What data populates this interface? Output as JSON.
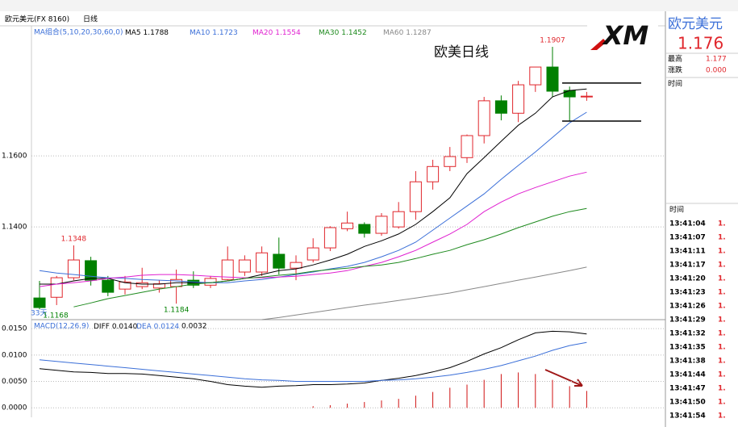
{
  "toolbar": {
    "symbol": "欧元美元(FX 8160)",
    "period": "日线"
  },
  "header": {
    "logo": "XM"
  },
  "chart_data": [
    {
      "type": "candlestick",
      "title": "欧美日线",
      "legend_title": "MA组合(5,10,20,30,60,0)",
      "period_label": "33天",
      "up_color": "#e0262c",
      "down_color": "#008000",
      "ylim": [
        1.1139,
        1.1966
      ],
      "yticks": [
        {
          "value": 1.14,
          "label": "1.1400"
        },
        {
          "value": 1.16,
          "label": "1.1600"
        }
      ],
      "grid": true,
      "open": [
        1.12,
        1.1202,
        1.1257,
        1.1305,
        1.125,
        1.1225,
        1.1232,
        1.1228,
        1.1232,
        1.125,
        1.1236,
        1.1252,
        1.1273,
        1.1273,
        1.1323,
        1.1284,
        1.1307,
        1.1341,
        1.1395,
        1.1407,
        1.1382,
        1.14,
        1.1443,
        1.1527,
        1.157,
        1.1595,
        1.1657,
        1.1755,
        1.172,
        1.18,
        1.185,
        1.1784,
        1.1768
      ],
      "high": [
        1.1248,
        1.1262,
        1.1348,
        1.1316,
        1.1262,
        1.1262,
        1.1285,
        1.125,
        1.128,
        1.1275,
        1.1262,
        1.1345,
        1.132,
        1.1345,
        1.137,
        1.132,
        1.1368,
        1.1402,
        1.1443,
        1.1413,
        1.1439,
        1.147,
        1.1557,
        1.1589,
        1.1625,
        1.166,
        1.1766,
        1.177,
        1.1811,
        1.185,
        1.1907,
        1.1795,
        1.178
      ],
      "low": [
        1.1168,
        1.118,
        1.125,
        1.1235,
        1.1205,
        1.121,
        1.1225,
        1.1215,
        1.1184,
        1.1228,
        1.1228,
        1.1248,
        1.1262,
        1.1262,
        1.1266,
        1.125,
        1.13,
        1.1332,
        1.1388,
        1.137,
        1.1375,
        1.1395,
        1.142,
        1.1505,
        1.1557,
        1.158,
        1.1635,
        1.17,
        1.1695,
        1.178,
        1.1765,
        1.1698,
        1.1755
      ],
      "close": [
        1.1173,
        1.1257,
        1.1307,
        1.125,
        1.1216,
        1.1245,
        1.1243,
        1.124,
        1.1252,
        1.1236,
        1.1255,
        1.1307,
        1.1307,
        1.1327,
        1.1284,
        1.13,
        1.1341,
        1.1398,
        1.1411,
        1.1382,
        1.143,
        1.1443,
        1.1527,
        1.157,
        1.1598,
        1.1657,
        1.1755,
        1.172,
        1.18,
        1.185,
        1.1782,
        1.1766,
        1.1768
      ],
      "annotations": [
        {
          "text": "1.1907",
          "field": "high",
          "index": 30
        },
        {
          "text": "1.1348",
          "field": "high",
          "index": 2
        },
        {
          "text": "1.1184",
          "field": "low",
          "index": 8
        },
        {
          "text": "1.1168",
          "field": "low",
          "index": 0
        }
      ],
      "hlines": [
        1.1805,
        1.1698
      ],
      "series": [
        {
          "name": "MA5",
          "color": "#000000",
          "values": [
            1.1239,
            1.1239,
            1.1248,
            1.1255,
            1.1255,
            1.1243,
            1.1239,
            1.1239,
            1.1243,
            1.1243,
            1.1243,
            1.1248,
            1.1255,
            1.1266,
            1.1277,
            1.1282,
            1.1293,
            1.1307,
            1.1323,
            1.1345,
            1.1361,
            1.138,
            1.1407,
            1.1443,
            1.1482,
            1.155,
            1.1595,
            1.1641,
            1.1686,
            1.172,
            1.1766,
            1.1784,
            1.1788
          ]
        },
        {
          "name": "MA10",
          "color": "#3b6fd8",
          "values": [
            1.1277,
            1.127,
            1.1266,
            1.1261,
            1.1257,
            1.1255,
            1.1252,
            1.125,
            1.1248,
            1.1245,
            1.1243,
            1.1243,
            1.1248,
            1.1252,
            1.1259,
            1.1266,
            1.1273,
            1.1282,
            1.1289,
            1.13,
            1.1316,
            1.1334,
            1.1357,
            1.1391,
            1.1425,
            1.1459,
            1.1493,
            1.1534,
            1.1573,
            1.1611,
            1.1652,
            1.1693,
            1.1723
          ]
        },
        {
          "name": "MA20",
          "color": "#e020d0",
          "values": [
            1.1232,
            1.1239,
            1.1243,
            1.1248,
            1.1255,
            1.1259,
            1.1264,
            1.1266,
            1.1266,
            1.1264,
            1.1261,
            1.1259,
            1.1257,
            1.1257,
            1.1259,
            1.1261,
            1.1266,
            1.127,
            1.1277,
            1.1289,
            1.13,
            1.1316,
            1.1334,
            1.1357,
            1.138,
            1.1407,
            1.1443,
            1.147,
            1.1493,
            1.1511,
            1.1527,
            1.1543,
            1.1554
          ]
        },
        {
          "name": "MA30",
          "color": "#1e8a1e",
          "values": [
            null,
            null,
            1.1175,
            1.1186,
            1.1198,
            1.1207,
            1.1216,
            1.1225,
            1.1232,
            1.1239,
            1.1243,
            1.1248,
            1.1255,
            1.1259,
            1.1264,
            1.1268,
            1.1275,
            1.128,
            1.1284,
            1.1289,
            1.1293,
            1.13,
            1.1311,
            1.1323,
            1.1334,
            1.135,
            1.1364,
            1.138,
            1.1398,
            1.1414,
            1.143,
            1.1443,
            1.1452
          ]
        },
        {
          "name": "MA60",
          "color": "#888888",
          "values": [
            null,
            null,
            null,
            null,
            null,
            null,
            null,
            null,
            null,
            null,
            null,
            null,
            null,
            1.1139,
            1.1145,
            1.1152,
            1.1159,
            1.1166,
            1.1173,
            1.118,
            1.1186,
            1.1193,
            1.12,
            1.1207,
            1.1214,
            1.1223,
            1.1232,
            1.1241,
            1.125,
            1.1259,
            1.1268,
            1.1277,
            1.1287
          ]
        }
      ]
    },
    {
      "type": "macd",
      "title": "MACD(12,26,9)",
      "ylim": [
        -0.0018,
        0.0164
      ],
      "yticks": [
        {
          "value": 0,
          "label": "0.0000"
        },
        {
          "value": 0.005,
          "label": "0.0050"
        },
        {
          "value": 0.01,
          "label": "0.0100"
        },
        {
          "value": 0.015,
          "label": "0.0150"
        }
      ],
      "grid": true,
      "series": [
        {
          "name": "DIFF",
          "color": "#000000",
          "last_label": "0.0140",
          "values": [
            0.0074,
            0.0071,
            0.0068,
            0.0067,
            0.0065,
            0.0065,
            0.0064,
            0.0061,
            0.0058,
            0.0055,
            0.005,
            0.0044,
            0.0041,
            0.0039,
            0.0041,
            0.0042,
            0.0044,
            0.0044,
            0.0045,
            0.0047,
            0.0052,
            0.0056,
            0.0061,
            0.0068,
            0.0076,
            0.0088,
            0.0102,
            0.0114,
            0.0129,
            0.0142,
            0.0145,
            0.0144,
            0.014
          ]
        },
        {
          "name": "DEA",
          "color": "#3b6fd8",
          "last_label": "0.0124",
          "values": [
            0.0091,
            0.0088,
            0.0085,
            0.0082,
            0.0079,
            0.0076,
            0.0073,
            0.007,
            0.0067,
            0.0064,
            0.0061,
            0.0058,
            0.0055,
            0.0053,
            0.0052,
            0.005,
            0.005,
            0.005,
            0.005,
            0.005,
            0.0052,
            0.0053,
            0.0055,
            0.0058,
            0.0062,
            0.0067,
            0.0073,
            0.008,
            0.0089,
            0.0098,
            0.0109,
            0.0118,
            0.0124
          ]
        }
      ],
      "bars": {
        "color": "#d01010",
        "last_label": "0.0032",
        "values": [
          null,
          null,
          null,
          null,
          null,
          null,
          null,
          null,
          null,
          null,
          null,
          null,
          null,
          null,
          null,
          null,
          0.0003,
          0.0005,
          0.0008,
          0.0011,
          0.0014,
          0.0017,
          0.0023,
          0.003,
          0.0038,
          0.0044,
          0.0053,
          0.0064,
          0.0067,
          0.0064,
          0.0053,
          0.0041,
          0.0032
        ]
      }
    }
  ],
  "side_panel": {
    "name": "欧元美元",
    "price": "1.176",
    "high_label": "最高",
    "high": "1.177",
    "change_label": "涨跌",
    "change": "0.000",
    "time_label": "时间",
    "ticks_header": "时间",
    "rows": [
      [
        "13:41:04",
        "1."
      ],
      [
        "13:41:07",
        "1."
      ],
      [
        "13:41:11",
        "1."
      ],
      [
        "13:41:17",
        "1."
      ],
      [
        "13:41:20",
        "1."
      ],
      [
        "13:41:23",
        "1."
      ],
      [
        "13:41:26",
        "1."
      ],
      [
        "13:41:29",
        "1."
      ],
      [
        "13:41:32",
        "1."
      ],
      [
        "13:41:35",
        "1."
      ],
      [
        "13:41:38",
        "1."
      ],
      [
        "13:41:44",
        "1."
      ],
      [
        "13:41:47",
        "1."
      ],
      [
        "13:41:50",
        "1."
      ],
      [
        "13:41:54",
        "1."
      ]
    ]
  }
}
